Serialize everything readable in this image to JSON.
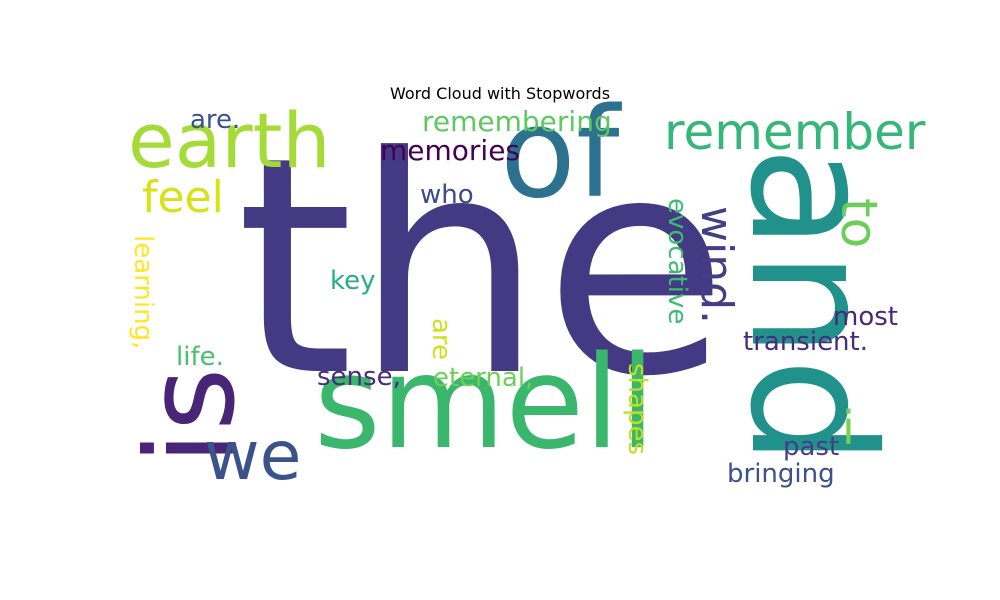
{
  "chart_data": {
    "type": "wordcloud",
    "title": "Word Cloud with Stopwords",
    "words": [
      {
        "text": "the",
        "weight": 1.0,
        "color": "#443983"
      },
      {
        "text": "and",
        "weight": 0.62,
        "color": "#21918c"
      },
      {
        "text": "smell",
        "weight": 0.58,
        "color": "#3bb66d"
      },
      {
        "text": "is",
        "weight": 0.56,
        "color": "#482576"
      },
      {
        "text": "of",
        "weight": 0.52,
        "color": "#2c728e"
      },
      {
        "text": "earth",
        "weight": 0.36,
        "color": "#a5db36"
      },
      {
        "text": "we",
        "weight": 0.32,
        "color": "#3b528b"
      },
      {
        "text": "remember",
        "weight": 0.24,
        "color": "#35b779"
      },
      {
        "text": "to",
        "weight": 0.24,
        "color": "#6ccd5a"
      },
      {
        "text": "i",
        "weight": 0.22,
        "color": "#7ad151"
      },
      {
        "text": "wind.",
        "weight": 0.2,
        "color": "#433e85"
      },
      {
        "text": "feel",
        "weight": 0.2,
        "color": "#d8e219"
      },
      {
        "text": "memories",
        "weight": 0.14,
        "color": "#440154"
      },
      {
        "text": "remembering",
        "weight": 0.14,
        "color": "#5ec962"
      },
      {
        "text": "are.",
        "weight": 0.13,
        "color": "#3b528b"
      },
      {
        "text": "who",
        "weight": 0.13,
        "color": "#3e4a89"
      },
      {
        "text": "key",
        "weight": 0.13,
        "color": "#29af7f"
      },
      {
        "text": "evocative",
        "weight": 0.13,
        "color": "#3dbc74"
      },
      {
        "text": "most",
        "weight": 0.13,
        "color": "#482878"
      },
      {
        "text": "transient.",
        "weight": 0.13,
        "color": "#472c7a"
      },
      {
        "text": "life.",
        "weight": 0.13,
        "color": "#48c16e"
      },
      {
        "text": "learning,",
        "weight": 0.13,
        "color": "#fde725"
      },
      {
        "text": "are",
        "weight": 0.13,
        "color": "#d0e11c"
      },
      {
        "text": "sense,",
        "weight": 0.13,
        "color": "#472d7b"
      },
      {
        "text": "eternal,",
        "weight": 0.13,
        "color": "#6ece58"
      },
      {
        "text": "shapes",
        "weight": 0.13,
        "color": "#c2df23"
      },
      {
        "text": "past",
        "weight": 0.13,
        "color": "#433e85"
      },
      {
        "text": "bringing",
        "weight": 0.13,
        "color": "#3b528b"
      }
    ]
  }
}
